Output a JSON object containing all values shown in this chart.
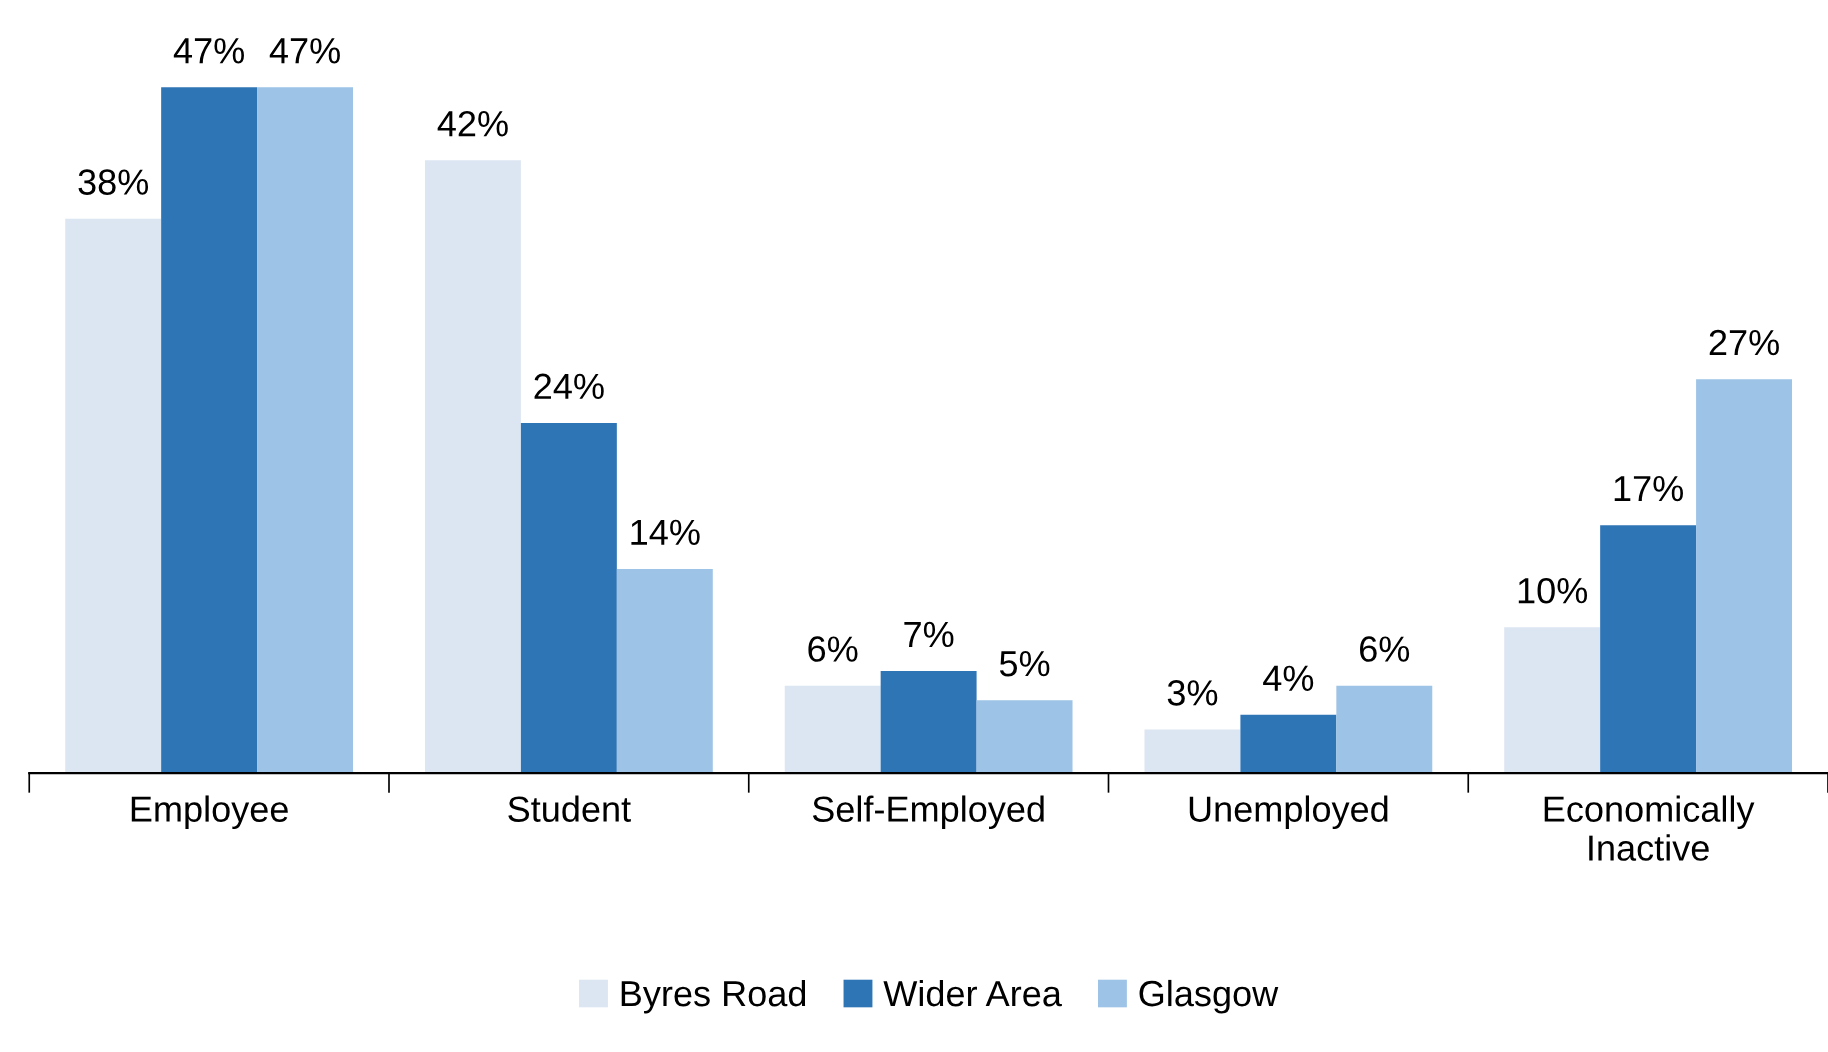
{
  "chart_data": {
    "type": "bar",
    "categories": [
      "Employee",
      "Student",
      "Self-Employed",
      "Unemployed",
      "Economically\nInactive"
    ],
    "series": [
      {
        "name": "Byres Road",
        "color": "#dce6f2",
        "values": [
          38,
          42,
          6,
          3,
          10
        ],
        "value_labels": [
          "38%",
          "42%",
          "6%",
          "3%",
          "10%"
        ]
      },
      {
        "name": "Wider Area",
        "color": "#2e75b6",
        "values": [
          47,
          24,
          7,
          4,
          17
        ],
        "value_labels": [
          "47%",
          "24%",
          "7%",
          "4%",
          "17%"
        ]
      },
      {
        "name": "Glasgow",
        "color": "#9dc3e6",
        "values": [
          47,
          14,
          5,
          6,
          27
        ],
        "value_labels": [
          "47%",
          "14%",
          "5%",
          "6%",
          "27%"
        ]
      }
    ],
    "legend": "bottom",
    "grid": false
  }
}
